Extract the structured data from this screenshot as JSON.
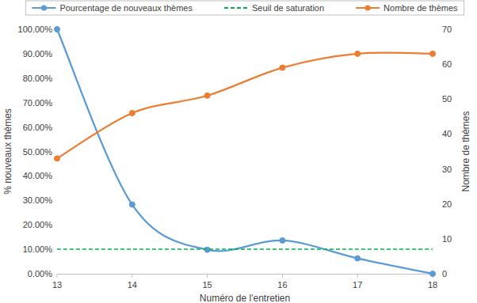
{
  "chart_data": {
    "type": "line",
    "x_label": "Numéro de l'entretien",
    "y_label": "% nouveaux thèmes",
    "y2_label": "Nombre de thèmes",
    "x": [
      13,
      14,
      15,
      16,
      17,
      18
    ],
    "xlim": [
      13,
      18
    ],
    "xticks": [
      13,
      14,
      15,
      16,
      17,
      18
    ],
    "ylim": [
      0,
      100
    ],
    "yticks": [
      {
        "value": 0,
        "label": "0.00%"
      },
      {
        "value": 10,
        "label": "10.00%"
      },
      {
        "value": 20,
        "label": "20.00%"
      },
      {
        "value": 30,
        "label": "30.00%"
      },
      {
        "value": 40,
        "label": "40.00%"
      },
      {
        "value": 50,
        "label": "50.00%"
      },
      {
        "value": 60,
        "label": "60.00%"
      },
      {
        "value": 70,
        "label": "70.00%"
      },
      {
        "value": 80,
        "label": "80.00%"
      },
      {
        "value": 90,
        "label": "90.00%"
      },
      {
        "value": 100,
        "label": "100.00%"
      }
    ],
    "y2lim": [
      0,
      70
    ],
    "y2ticks": [
      0,
      10,
      20,
      30,
      40,
      50,
      60,
      70
    ],
    "grid": false,
    "legend": "top",
    "series": [
      {
        "name": "Pourcentage de nouveaux thèmes",
        "color": "#5b9bd5",
        "marker": "circle",
        "line_style": "solid",
        "axis": "y",
        "values": [
          100,
          28.3,
          9.8,
          13.6,
          6.3,
          0
        ]
      },
      {
        "name": "Seuil de saturation",
        "color": "#00b050",
        "marker": "none",
        "line_style": "dashed",
        "axis": "y",
        "values": [
          10,
          10,
          10,
          10,
          10,
          10
        ]
      },
      {
        "name": "Nombre de thèmes",
        "color": "#ed7d31",
        "marker": "circle",
        "line_style": "solid",
        "axis": "y2",
        "values": [
          33,
          46,
          51,
          59,
          63,
          63
        ]
      }
    ]
  }
}
